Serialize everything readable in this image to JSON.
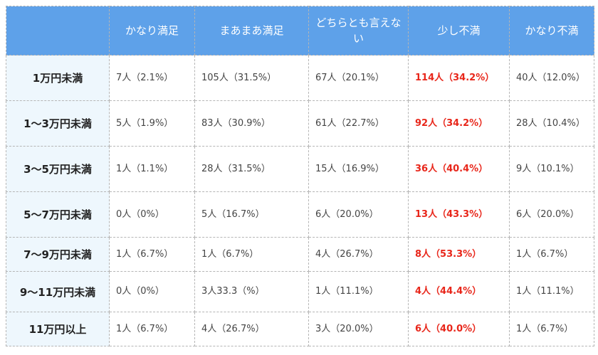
{
  "table": {
    "headers": [
      "",
      "かなり満足",
      "まあまあ満足",
      "どちらとも言えない",
      "少し不満",
      "かなり不満"
    ],
    "rows": [
      {
        "label": "1万円未満",
        "cells": [
          "7人（2.1%）",
          "105人（31.5%）",
          "67人（20.1%）",
          "114人（34.2%）",
          "40人（12.0%）"
        ]
      },
      {
        "label": "1〜3万円未満",
        "cells": [
          "5人（1.9%）",
          "83人（30.9%）",
          "61人（22.7%）",
          "92人（34.2%）",
          "28人（10.4%）"
        ]
      },
      {
        "label": "3〜5万円未満",
        "cells": [
          "1人（1.1%）",
          "28人（31.5%）",
          "15人（16.9%）",
          "36人（40.4%）",
          "9人（10.1%）"
        ]
      },
      {
        "label": "5〜7万円未満",
        "cells": [
          "0人（0%）",
          "5人（16.7%）",
          "6人（20.0%）",
          "13人（43.3%）",
          "6人（20.0%）"
        ]
      },
      {
        "label": "7〜9万円未満",
        "cells": [
          "1人（6.7%）",
          "1人（6.7%）",
          "4人（26.7%）",
          "8人（53.3%）",
          "1人（6.7%）"
        ]
      },
      {
        "label": "9〜11万円未満",
        "cells": [
          "0人（0%）",
          "3人33.3（%）",
          "1人（11.1%）",
          "4人（44.4%）",
          "1人（11.1%）"
        ]
      },
      {
        "label": "11万円以上",
        "cells": [
          "1人（6.7%）",
          "4人（26.7%）",
          "3人（20.0%）",
          "6人（40.0%）",
          "1人（6.7%）"
        ]
      }
    ]
  },
  "colors": {
    "header_bg": "#5ea1e9",
    "row_header_bg": "#eef7fd",
    "highlight_text": "#e8261a",
    "border": "#b5b5b5"
  }
}
